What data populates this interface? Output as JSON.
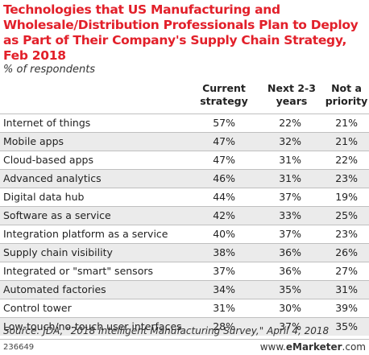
{
  "header": {
    "title": "Technologies that US Manufacturing and Wholesale/Distribution Professionals Plan to Deploy as Part of Their Company's Supply Chain Strategy, Feb 2018",
    "subtitle": "% of respondents"
  },
  "chart_data": {
    "type": "table",
    "title": "Technologies that US Manufacturing and Wholesale/Distribution Professionals Plan to Deploy as Part of Their Company's Supply Chain Strategy, Feb 2018",
    "subtitle": "% of respondents",
    "columns": [
      {
        "line1": "Current",
        "line2": "strategy"
      },
      {
        "line1": "Next 2-3",
        "line2": "years"
      },
      {
        "line1": "Not a",
        "line2": "priority"
      }
    ],
    "rows": [
      {
        "label": "Internet of things",
        "values": [
          "57%",
          "22%",
          "21%"
        ]
      },
      {
        "label": "Mobile apps",
        "values": [
          "47%",
          "32%",
          "21%"
        ]
      },
      {
        "label": "Cloud-based apps",
        "values": [
          "47%",
          "31%",
          "22%"
        ]
      },
      {
        "label": "Advanced analytics",
        "values": [
          "46%",
          "31%",
          "23%"
        ]
      },
      {
        "label": "Digital data hub",
        "values": [
          "44%",
          "37%",
          "19%"
        ]
      },
      {
        "label": "Software as a service",
        "values": [
          "42%",
          "33%",
          "25%"
        ]
      },
      {
        "label": "Integration platform as a service",
        "values": [
          "40%",
          "37%",
          "23%"
        ]
      },
      {
        "label": "Supply chain visibility",
        "values": [
          "38%",
          "36%",
          "26%"
        ]
      },
      {
        "label": "Integrated or \"smart\" sensors",
        "values": [
          "37%",
          "36%",
          "27%"
        ]
      },
      {
        "label": "Automated factories",
        "values": [
          "34%",
          "35%",
          "31%"
        ]
      },
      {
        "label": "Control tower",
        "values": [
          "31%",
          "30%",
          "39%"
        ]
      },
      {
        "label": "Low-touch/no-touch user interfaces",
        "values": [
          "28%",
          "37%",
          "35%"
        ]
      }
    ]
  },
  "footer": {
    "source": "Source: JDA, \"2018 Intelligent Manufacturing Survey,\" April 4, 2018",
    "chart_id": "236649",
    "brand_prefix": "www.",
    "brand_name": "eMarketer",
    "brand_suffix": ".com"
  },
  "colors": {
    "title": "#e2202a",
    "stripe": "#ebebeb",
    "rule": "#bfbfbf"
  }
}
